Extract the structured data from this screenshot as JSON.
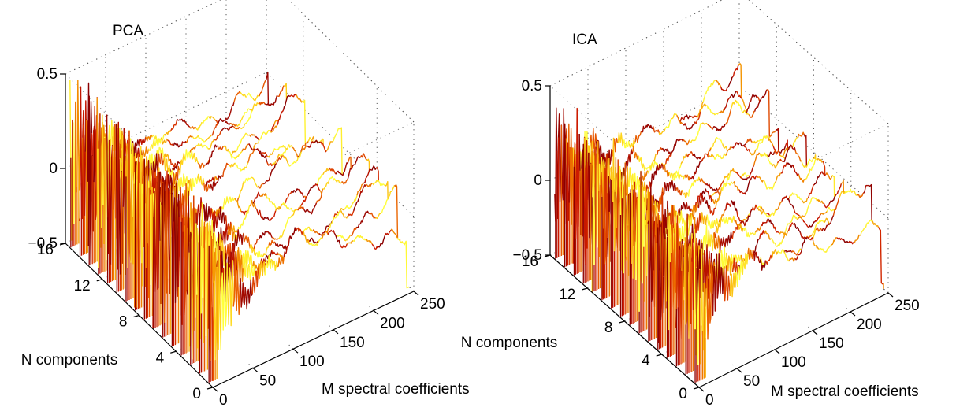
{
  "chart_data": [
    {
      "type": "3d-waterfall",
      "title": "PCA",
      "xlabel": "M spectral coefficients",
      "ylabel": "N components",
      "zlabel": "",
      "xlim": [
        0,
        250
      ],
      "ylim": [
        0,
        16
      ],
      "zlim": [
        -0.5,
        0.5
      ],
      "xticks": [
        0,
        50,
        100,
        150,
        200,
        250
      ],
      "yticks": [
        0,
        4,
        8,
        12,
        16
      ],
      "zticks": [
        -0.5,
        0,
        0.5
      ],
      "zticklabels": [
        "−0.5",
        "0",
        "0.5"
      ],
      "grid": true,
      "colormap": [
        "#8b0000",
        "#cc1a00",
        "#e85a00",
        "#f39000",
        "#ffd21a",
        "#ffff3a"
      ],
      "series_count": 16,
      "points_per_series": 256
    },
    {
      "type": "3d-waterfall",
      "title": "ICA",
      "xlabel": "M spectral coefficients",
      "ylabel": "N components",
      "zlabel": "",
      "xlim": [
        0,
        250
      ],
      "ylim": [
        0,
        16
      ],
      "zlim": [
        -0.5,
        0.5
      ],
      "xticks": [
        0,
        50,
        100,
        150,
        200,
        250
      ],
      "yticks": [
        0,
        4,
        8,
        12,
        16
      ],
      "zticks": [
        -0.5,
        0,
        0.5
      ],
      "zticklabels": [
        "−0.5",
        "0",
        "0.5"
      ],
      "grid": true,
      "colormap": [
        "#8b0000",
        "#cc1a00",
        "#e85a00",
        "#f39000",
        "#ffd21a",
        "#ffff3a"
      ],
      "series_count": 16,
      "points_per_series": 256
    }
  ]
}
